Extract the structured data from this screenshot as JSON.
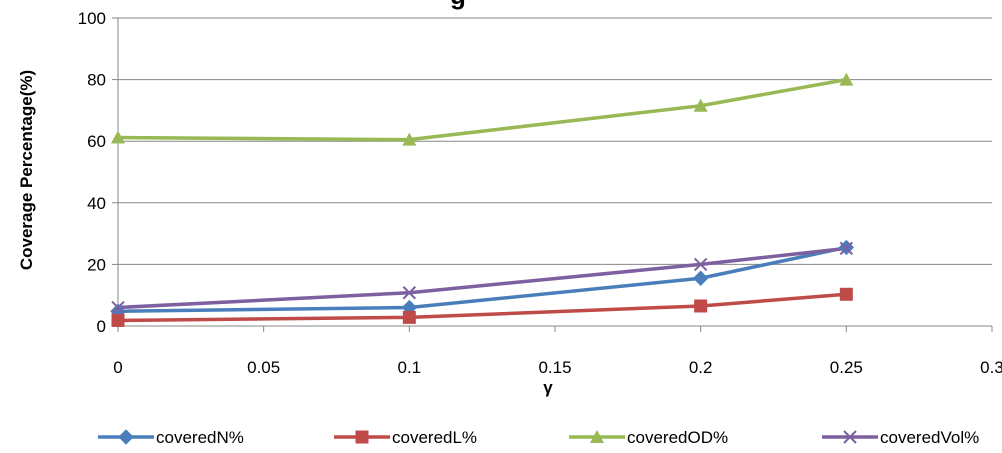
{
  "chart_data": {
    "type": "line",
    "title": "g",
    "xlabel": "γ",
    "ylabel": "Coverage Percentage(%)",
    "xlim": [
      0,
      0.3
    ],
    "ylim": [
      0,
      100
    ],
    "x_ticks": [
      "0",
      "0.05",
      "0.1",
      "0.15",
      "0.2",
      "0.25",
      "0.3"
    ],
    "y_ticks": [
      "0",
      "20",
      "40",
      "60",
      "80",
      "100"
    ],
    "x_tick_values": [
      0,
      0.05,
      0.1,
      0.15,
      0.2,
      0.25,
      0.3
    ],
    "y_tick_values": [
      0,
      20,
      40,
      60,
      80,
      100
    ],
    "grid": "horizontal",
    "legend_position": "bottom",
    "x": [
      0,
      0.1,
      0.2,
      0.25
    ],
    "series": [
      {
        "name": "coveredN%",
        "values": [
          4.8,
          6.0,
          15.5,
          25.5
        ],
        "color": "#4a7ebb",
        "marker": "diamond"
      },
      {
        "name": "coveredL%",
        "values": [
          1.8,
          2.8,
          6.5,
          10.3
        ],
        "color": "#be4b48",
        "marker": "square"
      },
      {
        "name": "coveredOD%",
        "values": [
          61.2,
          60.5,
          71.5,
          80.0
        ],
        "color": "#98b954",
        "marker": "triangle"
      },
      {
        "name": "coveredVol%",
        "values": [
          6.0,
          10.8,
          20.0,
          25.2
        ],
        "color": "#7d60a0",
        "marker": "x"
      }
    ]
  }
}
